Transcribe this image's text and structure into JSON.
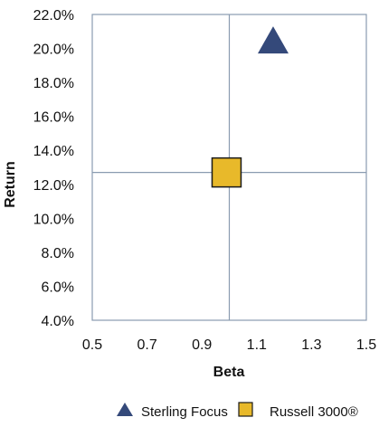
{
  "chart_data": {
    "type": "scatter",
    "title": "",
    "xlabel": "Beta",
    "ylabel": "Return",
    "xlim": [
      0.5,
      1.5
    ],
    "ylim": [
      4.0,
      22.0
    ],
    "x_ticks": [
      "0.5",
      "0.7",
      "0.9",
      "1.1",
      "1.3",
      "1.5"
    ],
    "y_ticks": [
      "22.0%",
      "20.0%",
      "18.0%",
      "16.0%",
      "14.0%",
      "12.0%",
      "10.0%",
      "8.0%",
      "6.0%",
      "4.0%"
    ],
    "reference_lines": {
      "x": 1.0,
      "y": 12.7
    },
    "grid": false,
    "legend_position": "bottom",
    "series": [
      {
        "name": "Sterling Focus",
        "marker": "triangle",
        "color": "#34497a",
        "x": 1.16,
        "y": 20.5
      },
      {
        "name": "Russell 3000®",
        "marker": "square",
        "color": "#e8b92a",
        "x": 0.99,
        "y": 12.7
      }
    ]
  }
}
